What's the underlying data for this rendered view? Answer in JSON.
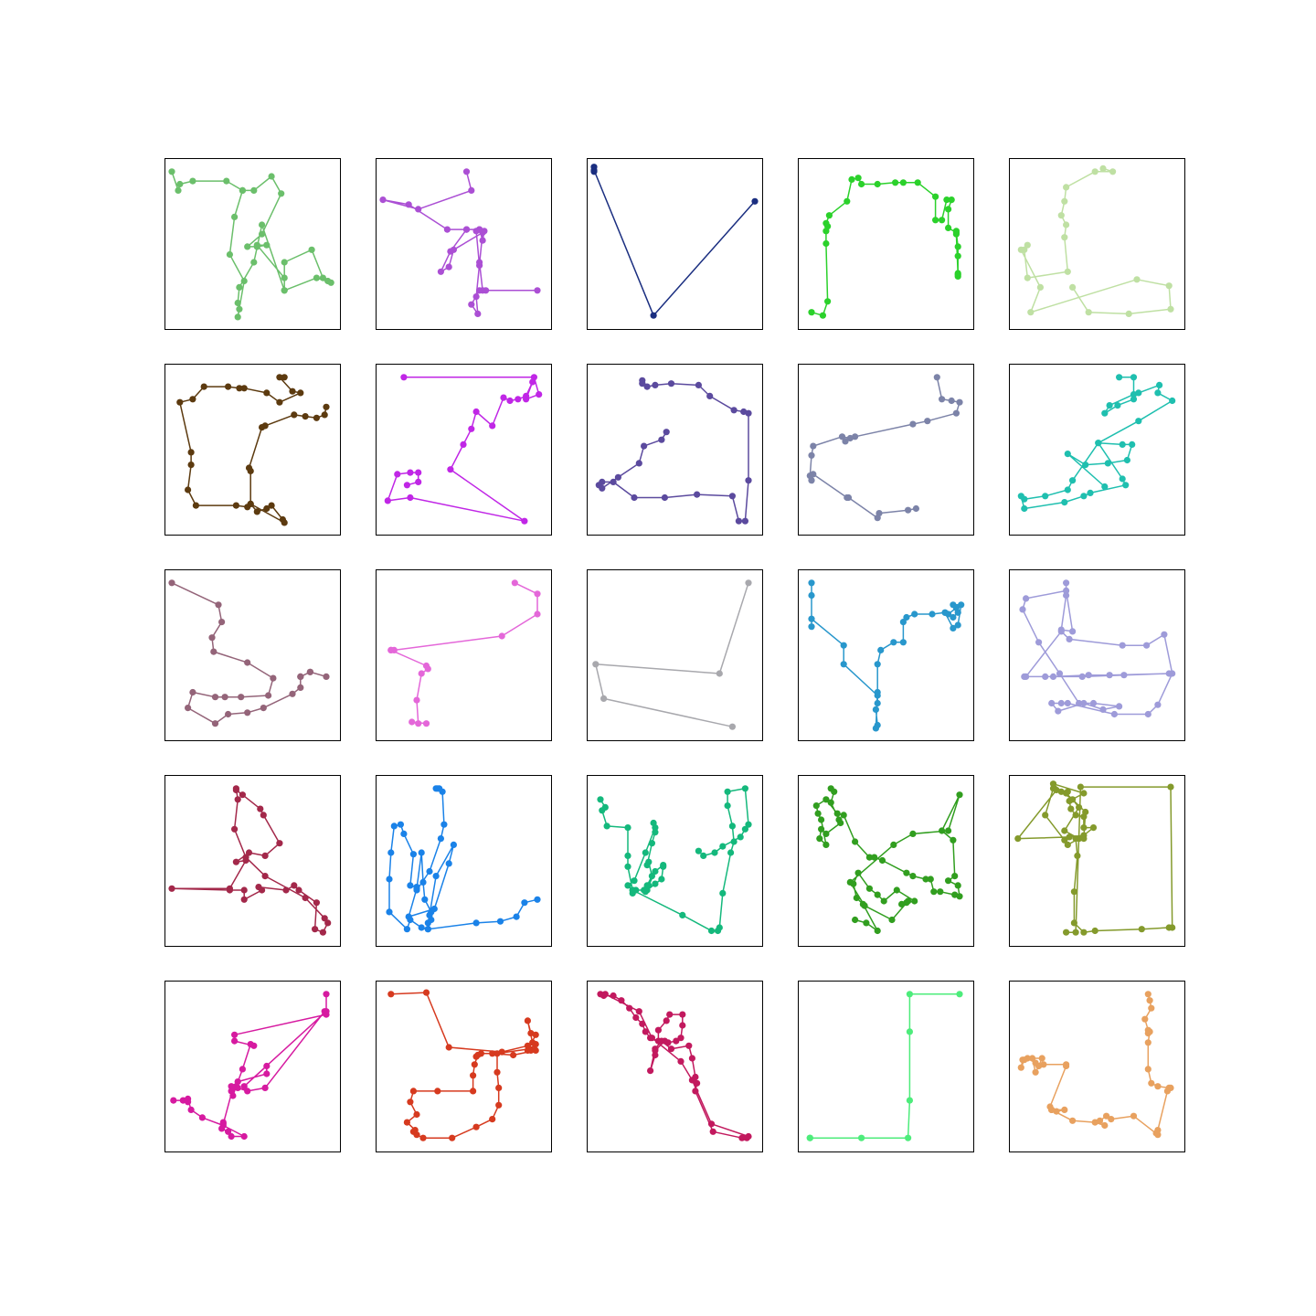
{
  "chart_data": [
    {
      "type": "line",
      "axes_visible": false,
      "color": "#6bbf6b",
      "x": [
        0,
        0.04,
        0.05,
        0.07,
        0.13,
        0.15,
        0.22,
        0.29,
        0.34,
        0.41,
        0.47,
        0.48,
        0.47,
        0.41,
        0.38,
        0.34,
        0.36,
        0.45,
        0.49,
        0.56,
        0.61,
        0.7,
        0.81,
        0.98,
        0.99,
        0.89,
        0.77,
        0.76,
        0.76,
        0.71
      ],
      "y": [
        0.96,
        0.88,
        0.85,
        0.82,
        0.72,
        0.62,
        0.44,
        0.58,
        0.46,
        0.28,
        0.1,
        0.02,
        0.07,
        0.2,
        0.43,
        0.78,
        0.94,
        0.9,
        0.7,
        0.84,
        0.95,
        0.68,
        0.54,
        0.56,
        0.38,
        0.24,
        0.2,
        0.38,
        0.62,
        0.55
      ]
    },
    {
      "type": "line",
      "axes_visible": false,
      "color": "#ab4fd4",
      "x": [
        0.56,
        0.58,
        0.27,
        0.18,
        0.01,
        0.17,
        0.43,
        0.53,
        0.58,
        0.6,
        0.64,
        0.67,
        1.0,
        0.78,
        0.71,
        0.64,
        0.6,
        0.56,
        0.6,
        0.64,
        0.66,
        0.61,
        0.43,
        0.38,
        0.43,
        0.51,
        0.6,
        0.62
      ],
      "y": [
        0.98,
        0.82,
        0.74,
        0.76,
        0.78,
        0.6,
        0.58,
        0.6,
        0.59,
        0.58,
        0.56,
        0.54,
        0.2,
        0.18,
        0.14,
        0.1,
        0.08,
        0.02,
        0.02,
        0.28,
        0.6,
        0.4,
        0.55,
        0.4,
        0.35,
        0.26,
        0.16,
        0.2
      ]
    },
    {
      "type": "line",
      "axes_visible": false,
      "color": "#1a2e80",
      "x": [
        1.0,
        0.37,
        0.0,
        0.0,
        0.0
      ],
      "y": [
        0.84,
        0.0,
        0.95,
        0.98,
        1.0
      ],
      "marker_note": ""
    },
    {
      "type": "line",
      "axes_visible": false,
      "color": "#2bd12b",
      "x": [
        0.04,
        0.1,
        0.16,
        0.14,
        0.14,
        0.14,
        0.13,
        0.13,
        0.14,
        0.26,
        0.31,
        0.35,
        0.36,
        0.42,
        0.49,
        0.56,
        0.62,
        0.76,
        0.81,
        0.84,
        0.85,
        0.85,
        0.92,
        0.94,
        0.98,
        0.98,
        0.99,
        0.98,
        0.97,
        0.95,
        0.94,
        0.94
      ],
      "y": [
        0.04,
        0.0,
        0.08,
        0.5,
        0.64,
        0.71,
        0.76,
        0.84,
        0.89,
        0.98,
        1.0,
        0.92,
        0.91,
        0.91,
        0.89,
        0.91,
        0.92,
        0.8,
        0.77,
        0.76,
        0.66,
        0.64,
        0.64,
        0.62,
        0.6,
        0.5,
        0.43,
        0.34,
        0.28,
        0.22,
        0.16,
        0.1
      ],
      "marker_note": ""
    },
    {
      "type": "line",
      "axes_visible": false,
      "color": "#bfe0a3",
      "x": [
        0.55,
        0.51,
        0.31,
        0.29,
        0.33,
        0.3,
        0.32,
        0.3,
        0.31,
        0.33,
        0.14,
        0.06,
        0.07,
        0.04,
        0.02,
        0.04,
        0.06,
        0.14,
        0.11,
        0.53,
        0.68,
        0.6,
        0.48,
        0.35,
        0.25,
        0.23,
        0.19,
        0.17,
        0.14,
        0.1
      ],
      "y": [
        0.98,
        1.0,
        0.95,
        0.89,
        0.9,
        0.77,
        0.73,
        0.68,
        0.6,
        0.53,
        0.25,
        0.06,
        0.42,
        0.47,
        0.51,
        0.54,
        0.48,
        0.02,
        0.0,
        0.02,
        0.06,
        0.12,
        0.24,
        0.32,
        0.06,
        0.03,
        0.02,
        0.24,
        0.16,
        0.05
      ],
      "marker_note": ""
    }
  ]
}
